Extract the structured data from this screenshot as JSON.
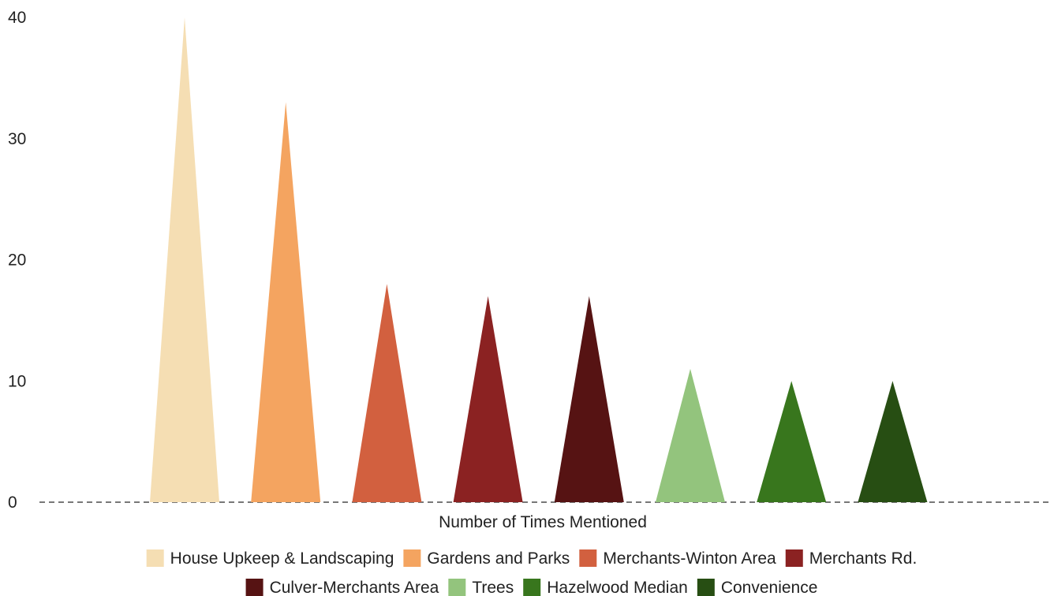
{
  "chart_data": {
    "type": "bar",
    "xlabel": "Number of Times Mentioned",
    "ylim": [
      0,
      40
    ],
    "yticks": [
      "0",
      "10",
      "20",
      "30",
      "40"
    ],
    "grid": false,
    "legend_placement": "bottom",
    "series": [
      {
        "name": "House Upkeep & Landscaping",
        "value": 40,
        "color": "#F5DEB3"
      },
      {
        "name": "Gardens and Parks",
        "value": 33,
        "color": "#F4A460"
      },
      {
        "name": "Merchants-Winton Area",
        "value": 18,
        "color": "#D2603F"
      },
      {
        "name": "Merchants Rd.",
        "value": 17,
        "color": "#8B2222"
      },
      {
        "name": "Culver-Merchants Area",
        "value": 17,
        "color": "#561313"
      },
      {
        "name": "Trees",
        "value": 11,
        "color": "#93C47D"
      },
      {
        "name": "Hazelwood Median",
        "value": 10,
        "color": "#38761D"
      },
      {
        "name": "Convenience",
        "value": 10,
        "color": "#274E13"
      }
    ]
  }
}
